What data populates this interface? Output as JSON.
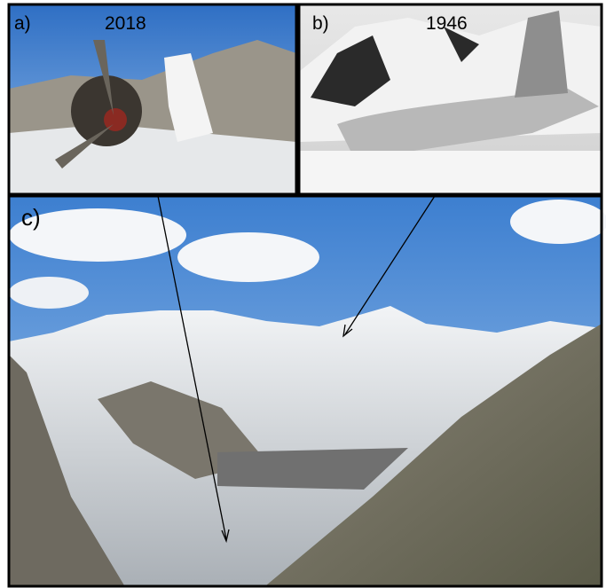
{
  "panels": [
    {
      "label": "a)",
      "year": "2018"
    },
    {
      "label": "b)",
      "year": "1946"
    },
    {
      "label": "c)"
    }
  ]
}
